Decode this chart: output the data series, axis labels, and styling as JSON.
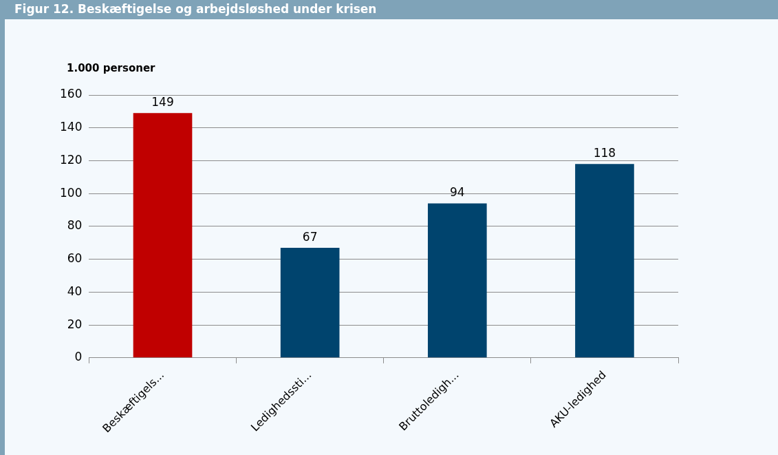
{
  "chart_data": {
    "type": "bar",
    "title": "Figur 12. Beskæftigelse og arbejdsløshed under krisen",
    "ylabel": "1.000 personer",
    "categories": [
      "Beskæftigels...",
      "Ledighedssti...",
      "Bruttoledigh...",
      "AKU-ledighed"
    ],
    "values": [
      149,
      67,
      94,
      118
    ],
    "colors": [
      "#c00000",
      "#00446e",
      "#00446e",
      "#00446e"
    ],
    "ylim": [
      0,
      160
    ],
    "yticks": [
      0,
      20,
      40,
      60,
      80,
      100,
      120,
      140,
      160
    ],
    "grid": "y",
    "data_labels": true,
    "legend": false
  }
}
